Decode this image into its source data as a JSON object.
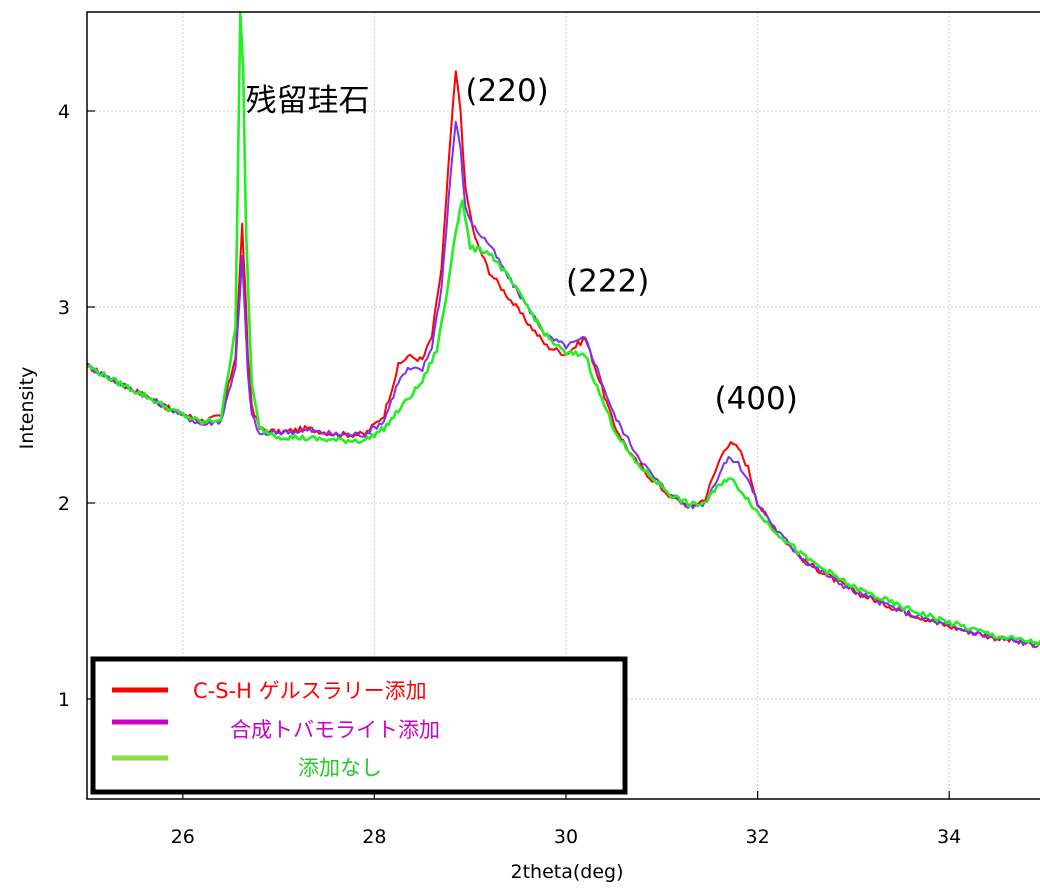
{
  "chart_data": {
    "type": "line",
    "xlabel": "2theta(deg)",
    "ylabel": "Intensity",
    "xlim": [
      25,
      35
    ],
    "ylim": [
      0.5,
      4.55
    ],
    "xticks": [
      "26",
      "28",
      "30",
      "32",
      "34"
    ],
    "yticks": [
      "1",
      "2",
      "3",
      "4"
    ],
    "grid": true,
    "legend_position": "bottom-left",
    "annotations": [
      {
        "text": "残留珪石",
        "x": 27.95,
        "y": 4.0
      },
      {
        "text": "(220)",
        "x": 28.95,
        "y": 4.05
      },
      {
        "text": "(222)",
        "x": 30.0,
        "y": 3.08
      },
      {
        "text": "(400)",
        "x": 31.55,
        "y": 2.48
      }
    ],
    "series": [
      {
        "name": "C-S-H ゲルスラリー添加",
        "color": "#ff0000",
        "x": [
          25.0,
          25.3,
          25.6,
          25.9,
          26.2,
          26.4,
          26.55,
          26.62,
          26.65,
          26.68,
          26.72,
          26.8,
          27.0,
          27.3,
          27.6,
          27.9,
          28.1,
          28.25,
          28.35,
          28.5,
          28.6,
          28.7,
          28.8,
          28.85,
          28.9,
          28.95,
          29.05,
          29.2,
          29.4,
          29.6,
          29.8,
          30.0,
          30.1,
          30.2,
          30.3,
          30.5,
          30.7,
          30.9,
          31.1,
          31.3,
          31.45,
          31.55,
          31.65,
          31.72,
          31.8,
          31.9,
          32.0,
          32.2,
          32.5,
          33.0,
          33.5,
          34.0,
          34.5,
          35.0
        ],
        "y": [
          2.7,
          2.62,
          2.55,
          2.47,
          2.42,
          2.44,
          2.75,
          3.42,
          3.1,
          2.75,
          2.5,
          2.38,
          2.36,
          2.38,
          2.35,
          2.35,
          2.45,
          2.7,
          2.75,
          2.73,
          2.85,
          3.2,
          3.9,
          4.2,
          4.0,
          3.6,
          3.35,
          3.18,
          3.05,
          2.92,
          2.8,
          2.76,
          2.8,
          2.84,
          2.7,
          2.4,
          2.23,
          2.12,
          2.03,
          1.98,
          2.02,
          2.15,
          2.28,
          2.3,
          2.28,
          2.18,
          2.0,
          1.85,
          1.7,
          1.55,
          1.45,
          1.37,
          1.31,
          1.27
        ]
      },
      {
        "name": "合成トバモライト添加",
        "color": "#7b2ff0",
        "x": [
          25.0,
          25.3,
          25.6,
          25.9,
          26.2,
          26.4,
          26.55,
          26.62,
          26.65,
          26.68,
          26.72,
          26.8,
          27.0,
          27.3,
          27.6,
          27.9,
          28.1,
          28.25,
          28.35,
          28.5,
          28.6,
          28.7,
          28.8,
          28.85,
          28.9,
          28.95,
          29.05,
          29.2,
          29.4,
          29.6,
          29.8,
          30.0,
          30.1,
          30.2,
          30.3,
          30.5,
          30.7,
          30.9,
          31.1,
          31.3,
          31.45,
          31.55,
          31.65,
          31.72,
          31.8,
          31.9,
          32.0,
          32.2,
          32.5,
          33.0,
          33.5,
          34.0,
          34.5,
          35.0
        ],
        "y": [
          2.7,
          2.62,
          2.55,
          2.47,
          2.4,
          2.42,
          2.7,
          3.25,
          2.95,
          2.65,
          2.45,
          2.35,
          2.36,
          2.37,
          2.35,
          2.35,
          2.42,
          2.62,
          2.68,
          2.68,
          2.8,
          3.1,
          3.7,
          3.95,
          3.8,
          3.5,
          3.4,
          3.32,
          3.15,
          3.0,
          2.85,
          2.8,
          2.82,
          2.84,
          2.72,
          2.45,
          2.28,
          2.14,
          2.04,
          1.98,
          2.0,
          2.1,
          2.2,
          2.23,
          2.2,
          2.12,
          2.0,
          1.86,
          1.7,
          1.55,
          1.45,
          1.37,
          1.31,
          1.27
        ]
      },
      {
        "name": "添加なし",
        "color": "#22ee22",
        "x": [
          25.0,
          25.3,
          25.6,
          25.9,
          26.2,
          26.4,
          26.55,
          26.6,
          26.63,
          26.66,
          26.72,
          26.8,
          27.0,
          27.3,
          27.6,
          27.9,
          28.1,
          28.3,
          28.5,
          28.65,
          28.75,
          28.85,
          28.92,
          29.0,
          29.2,
          29.4,
          29.6,
          29.8,
          30.0,
          30.2,
          30.3,
          30.5,
          30.7,
          30.9,
          31.1,
          31.3,
          31.45,
          31.55,
          31.65,
          31.72,
          31.8,
          31.9,
          32.0,
          32.2,
          32.5,
          33.0,
          33.5,
          34.0,
          34.5,
          35.0
        ],
        "y": [
          2.7,
          2.62,
          2.55,
          2.47,
          2.41,
          2.43,
          2.9,
          4.5,
          4.2,
          3.4,
          2.6,
          2.38,
          2.34,
          2.33,
          2.32,
          2.32,
          2.38,
          2.5,
          2.62,
          2.78,
          3.05,
          3.4,
          3.55,
          3.3,
          3.28,
          3.15,
          3.0,
          2.85,
          2.76,
          2.76,
          2.62,
          2.38,
          2.22,
          2.13,
          2.04,
          1.99,
          2.0,
          2.06,
          2.12,
          2.12,
          2.08,
          2.02,
          1.95,
          1.85,
          1.72,
          1.57,
          1.47,
          1.39,
          1.32,
          1.28
        ]
      }
    ]
  },
  "legend": [
    {
      "label": "C-S-H ゲルスラリー添加",
      "color": "#ff0000",
      "text_color": "#ff0000"
    },
    {
      "label": "合成トバモライト添加",
      "color": "#cc00cc",
      "text_color": "#cc00cc"
    },
    {
      "label": "添加なし",
      "color": "#88dd44",
      "text_color": "#22cc22"
    }
  ]
}
